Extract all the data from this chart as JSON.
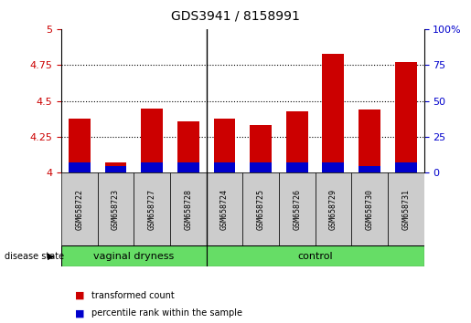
{
  "title": "GDS3941 / 8158991",
  "samples": [
    "GSM658722",
    "GSM658723",
    "GSM658727",
    "GSM658728",
    "GSM658724",
    "GSM658725",
    "GSM658726",
    "GSM658729",
    "GSM658730",
    "GSM658731"
  ],
  "red_values": [
    4.38,
    4.07,
    4.45,
    4.36,
    4.38,
    4.33,
    4.43,
    4.83,
    4.44,
    4.77
  ],
  "blue_values": [
    4.07,
    4.05,
    4.07,
    4.07,
    4.07,
    4.07,
    4.07,
    4.07,
    4.05,
    4.07
  ],
  "ymin": 4.0,
  "ymax": 5.0,
  "yticks_left": [
    4.0,
    4.25,
    4.5,
    4.75,
    5.0
  ],
  "ytick_labels_left": [
    "4",
    "4.25",
    "4.5",
    "4.75",
    "5"
  ],
  "ytick_labels_right": [
    "0",
    "25",
    "50",
    "75",
    "100%"
  ],
  "group_separator_idx": 4,
  "bar_width": 0.6,
  "red_color": "#CC0000",
  "blue_color": "#0000CC",
  "legend_red": "transformed count",
  "legend_blue": "percentile rank within the sample",
  "disease_state_label": "disease state",
  "axis_label_color_left": "#CC0000",
  "axis_label_color_right": "#0000CC",
  "sample_bg_color": "#CCCCCC",
  "group_color": "#66DD66",
  "group_labels": [
    "vaginal dryness",
    "control"
  ],
  "group_label_fontsize": 8,
  "dotted_lines": [
    4.25,
    4.5,
    4.75
  ]
}
